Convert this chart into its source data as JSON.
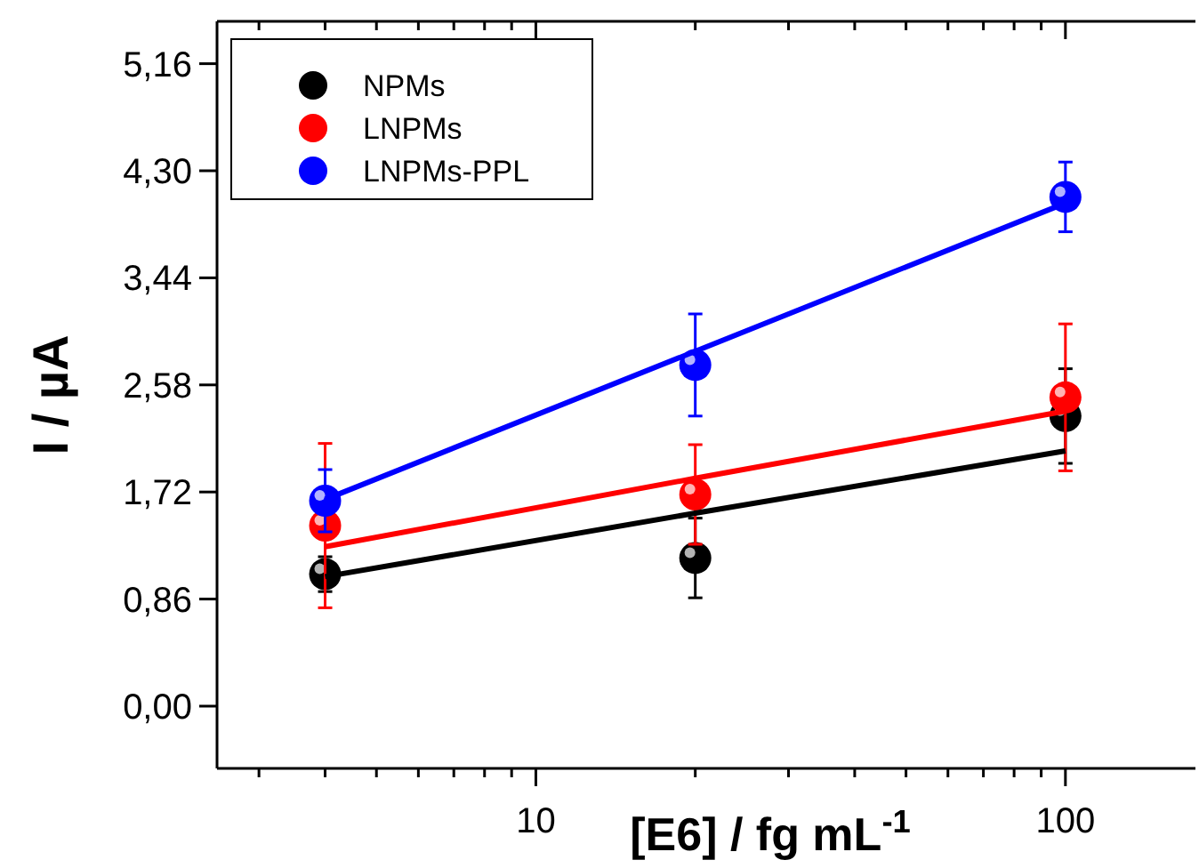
{
  "chart_data": {
    "type": "scatter",
    "xlabel": "[E6] / fg mL$^{-1}$",
    "ylabel": "I / µA",
    "log": "x",
    "xlim": [
      2.5,
      176
    ],
    "ylim": [
      -0.5,
      5.5
    ],
    "xticks": [
      {
        "value": 3,
        "label": null
      },
      {
        "value": 4,
        "label": null
      },
      {
        "value": 5,
        "label": null
      },
      {
        "value": 6,
        "label": null
      },
      {
        "value": 7,
        "label": null
      },
      {
        "value": 8,
        "label": null
      },
      {
        "value": 9,
        "label": null
      },
      10,
      {
        "value": 20,
        "label": null
      },
      {
        "value": 30,
        "label": null
      },
      {
        "value": 40,
        "label": null
      },
      {
        "value": 50,
        "label": null
      },
      {
        "value": 60,
        "label": null
      },
      {
        "value": 70,
        "label": null
      },
      {
        "value": 80,
        "label": null
      },
      {
        "value": 90,
        "label": null
      },
      100
    ],
    "yticks": [
      {
        "value": 0,
        "label": "0,00"
      },
      {
        "value": 0.86,
        "label": "0,86"
      },
      {
        "value": 1.72,
        "label": "1,72"
      },
      {
        "value": 2.58,
        "label": "2,58"
      },
      {
        "value": 3.44,
        "label": "3,44"
      },
      {
        "value": 4.3,
        "label": "4,30"
      },
      {
        "value": 5.16,
        "label": "5,16"
      }
    ],
    "legend": "top left",
    "marker": "circle",
    "x": [
      4,
      20,
      100
    ],
    "series": [
      {
        "name": "NPMs",
        "color": "#000000",
        "values": [
          1.06,
          1.19,
          2.33
        ],
        "errors": [
          0.14,
          0.32,
          0.38
        ]
      },
      {
        "name": "LNPMs",
        "color": "#ff0000",
        "values": [
          1.45,
          1.7,
          2.48
        ],
        "errors": [
          0.66,
          0.4,
          0.59
        ]
      },
      {
        "name": "LNPMs-PPL",
        "color": "#0000ff",
        "values": [
          1.65,
          2.74,
          4.09
        ],
        "errors": [
          0.25,
          0.41,
          0.28
        ]
      },
      {
        "type": "line",
        "marker": "none",
        "color": "#000000",
        "values": [
          1.04,
          1.55,
          2.05
        ]
      },
      {
        "type": "line",
        "marker": "none",
        "color": "#ff0000",
        "values": [
          1.28,
          1.83,
          2.37
        ]
      },
      {
        "type": "line",
        "marker": "none",
        "color": "#0000ff",
        "values": [
          1.66,
          2.85,
          4.04
        ]
      }
    ]
  }
}
